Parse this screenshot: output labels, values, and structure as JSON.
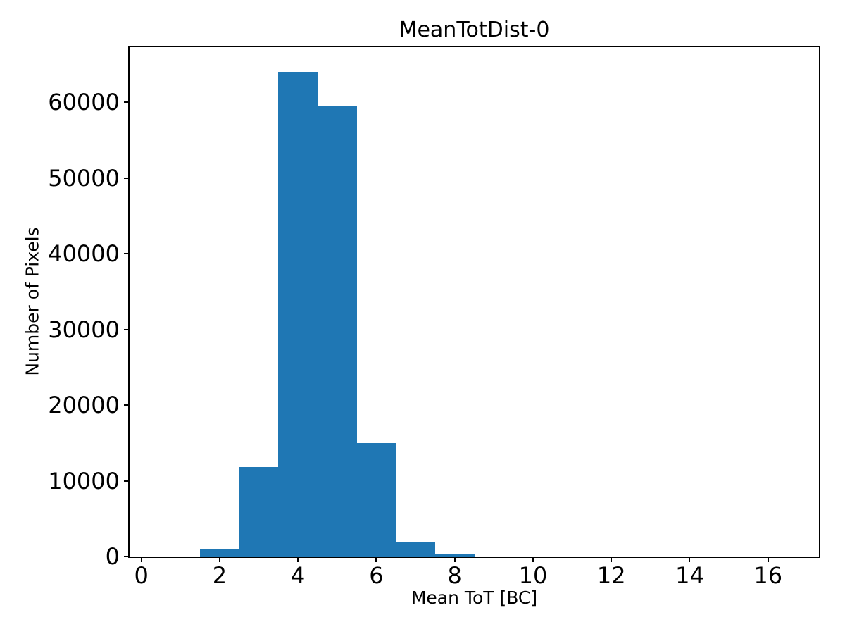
{
  "chart_data": {
    "type": "bar",
    "subtype": "histogram",
    "title": "MeanTotDist-0",
    "xlabel": "Mean ToT [BC]",
    "ylabel": "Number of Pixels",
    "bar_color": "#1f77b4",
    "axis_color": "#000000",
    "background_color": "#ffffff",
    "grid": false,
    "legend": null,
    "xlim": [
      -0.3,
      17.3
    ],
    "ylim": [
      0,
      67300
    ],
    "x_ticks": [
      0,
      2,
      4,
      6,
      8,
      10,
      12,
      14,
      16
    ],
    "y_ticks": [
      0,
      10000,
      20000,
      30000,
      40000,
      50000,
      60000
    ],
    "bin_edges": [
      0.5,
      1.5,
      2.5,
      3.5,
      4.5,
      5.5,
      6.5,
      7.5,
      8.5,
      9.5,
      10.5,
      11.5,
      12.5,
      13.5,
      14.5,
      15.5,
      16.5
    ],
    "counts": [
      0,
      1000,
      11800,
      64000,
      59600,
      15000,
      1850,
      350,
      0,
      0,
      0,
      0,
      0,
      0,
      0,
      0
    ]
  }
}
